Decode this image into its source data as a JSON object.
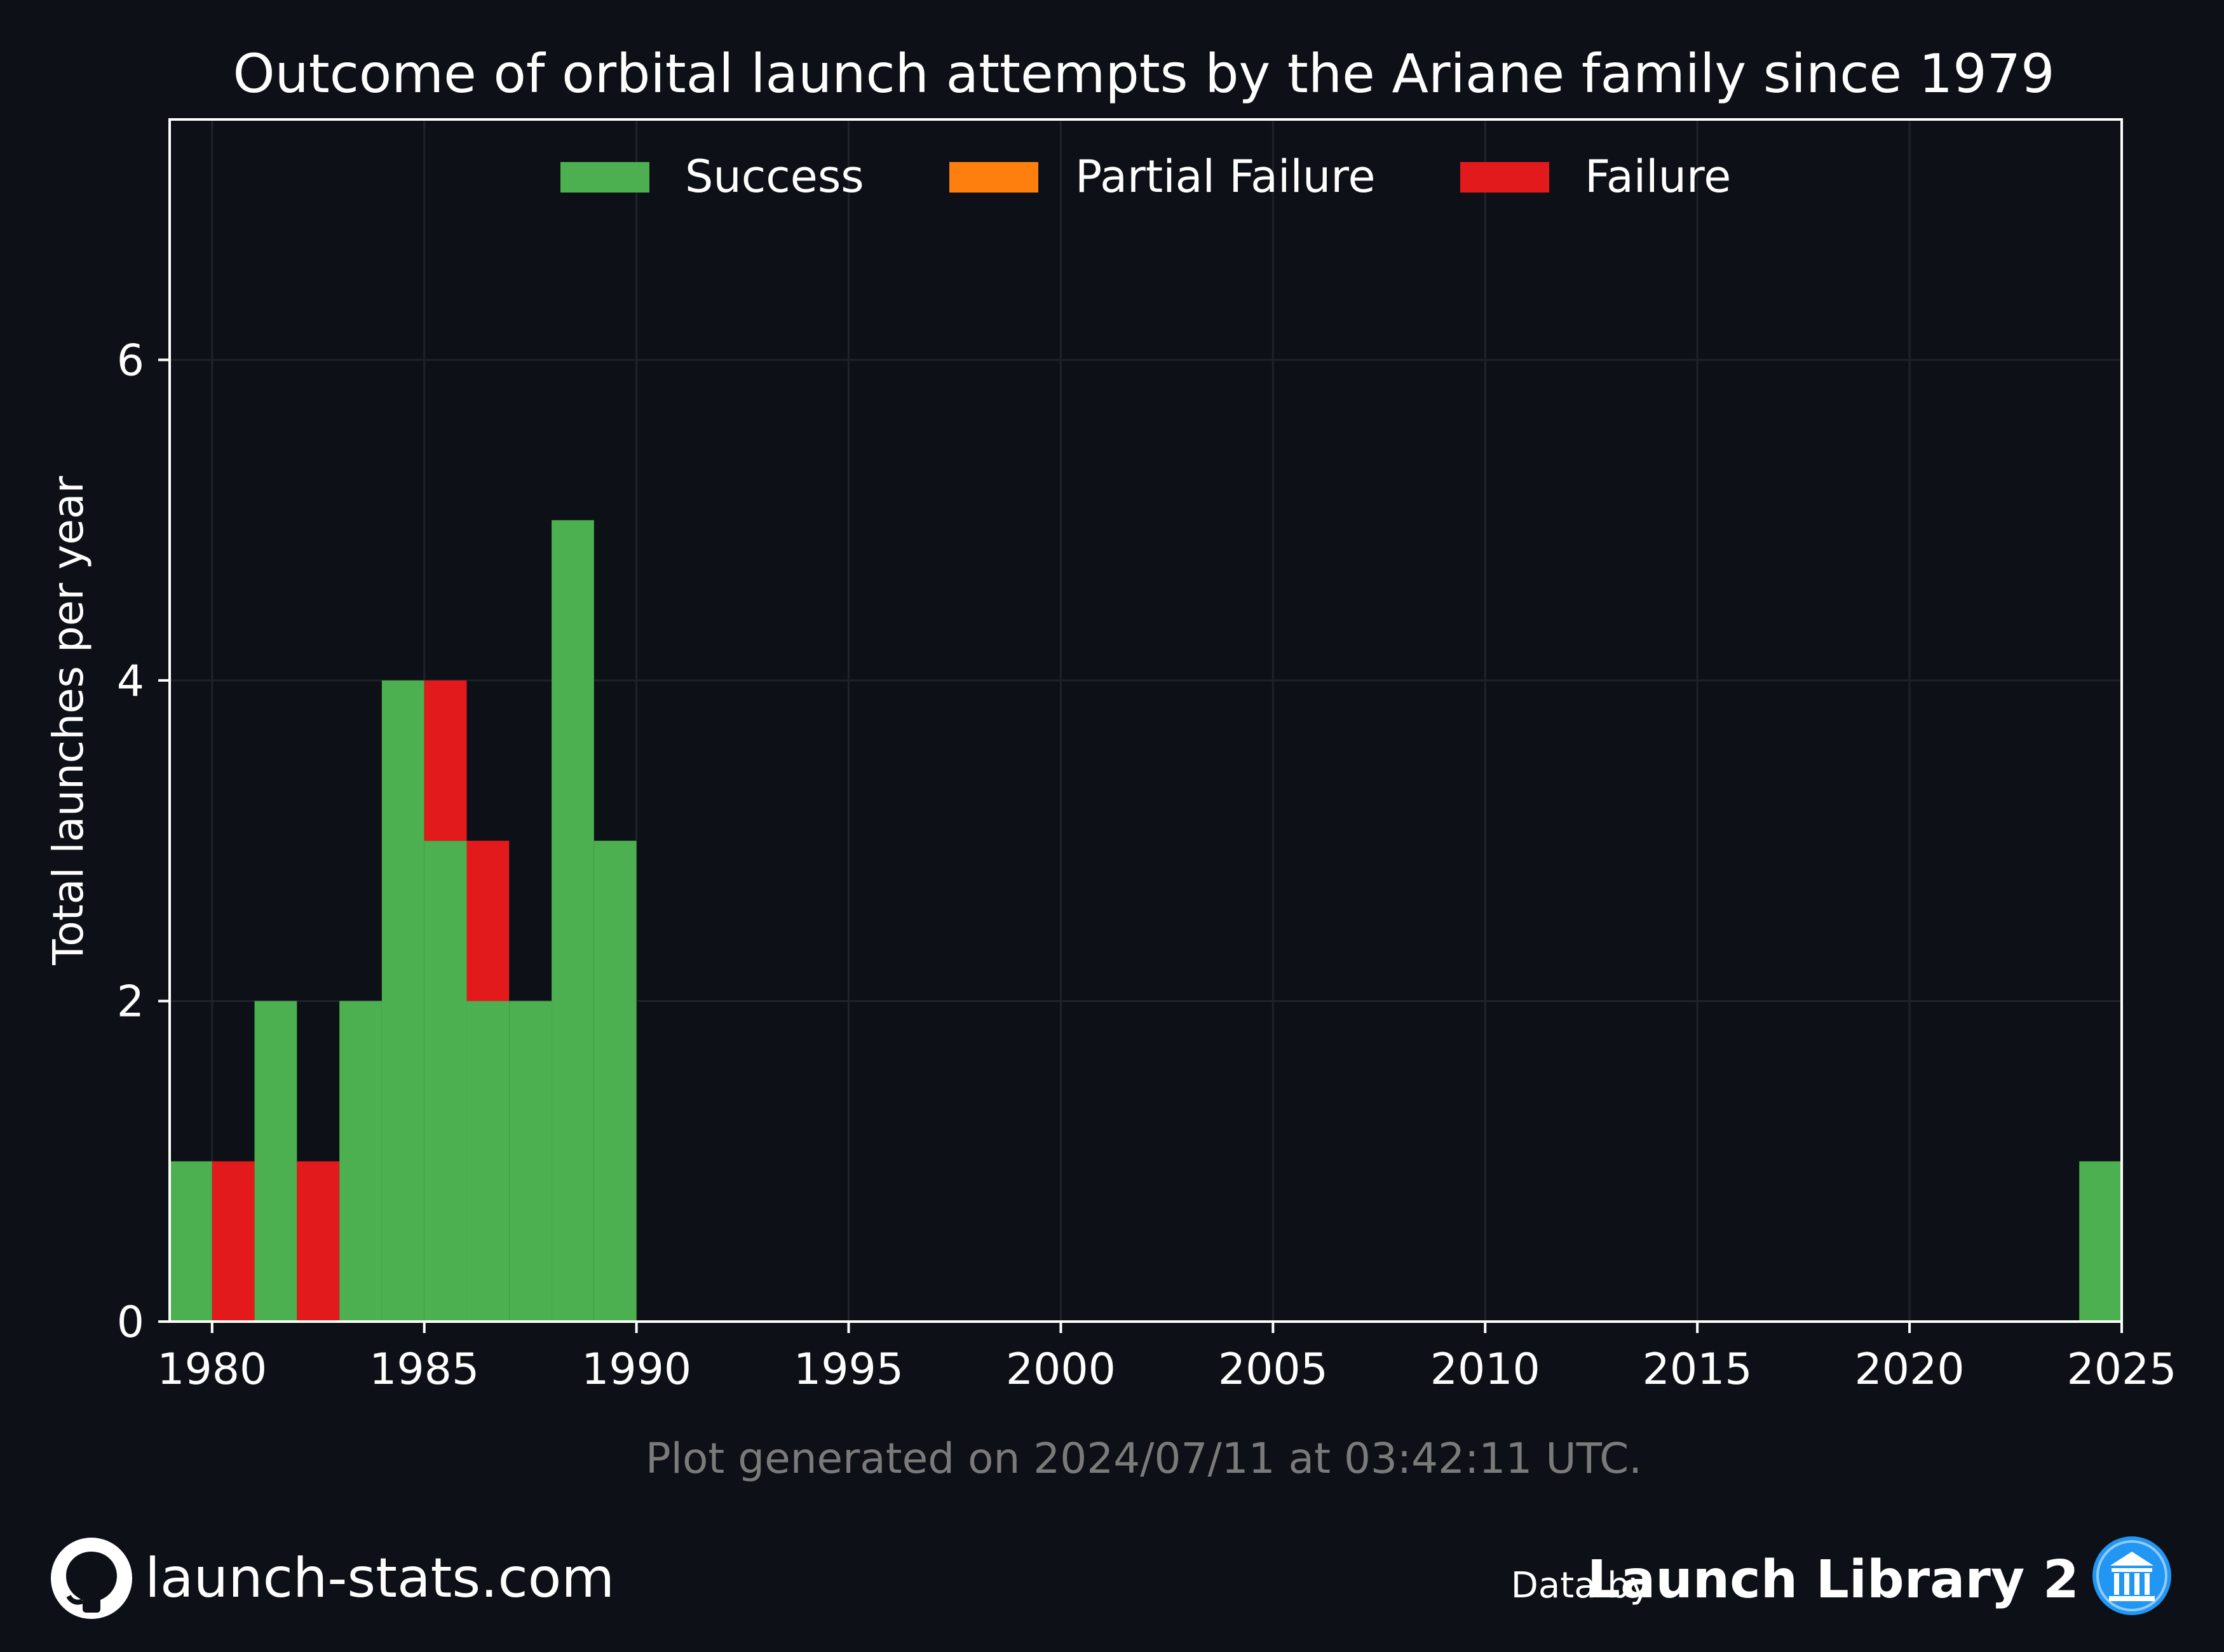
{
  "chart_data": {
    "type": "bar",
    "stacked": true,
    "title": "Outcome of orbital launch attempts by the Ariane family since 1979",
    "xlabel": "",
    "ylabel": "Total launches per year",
    "xlim": [
      1979,
      2025
    ],
    "ylim": [
      0,
      7.5
    ],
    "x_ticks": [
      "1980",
      "1985",
      "1990",
      "1995",
      "2000",
      "2005",
      "2010",
      "2015",
      "2020",
      "2025"
    ],
    "y_ticks": [
      "0",
      "2",
      "4",
      "6"
    ],
    "grid": true,
    "legend_position": "top-center",
    "categories": [
      1979,
      1980,
      1981,
      1982,
      1983,
      1984,
      1985,
      1986,
      1987,
      1988,
      1989,
      2024
    ],
    "series": [
      {
        "name": "Success",
        "color": "#4caf50",
        "values": [
          1,
          0,
          2,
          0,
          2,
          4,
          3,
          2,
          2,
          5,
          3,
          1
        ]
      },
      {
        "name": "Partial Failure",
        "color": "#ff7f0e",
        "values": [
          0,
          0,
          0,
          0,
          0,
          0,
          0,
          0,
          0,
          0,
          0,
          0
        ]
      },
      {
        "name": "Failure",
        "color": "#e31a1c",
        "values": [
          0,
          1,
          0,
          1,
          0,
          0,
          1,
          1,
          0,
          0,
          0,
          0
        ]
      }
    ]
  },
  "footer": {
    "generated_note": "Plot generated on 2024/07/11 at 03:42:11 UTC.",
    "site": "launch-stats.com",
    "data_by": "Data by",
    "brand": "Launch Library 2",
    "site_icon": "github-icon",
    "brand_icon": "launch-library-icon"
  },
  "colors": {
    "background": "#0d1017",
    "grid": "#1e2229",
    "axes": "#ffffff",
    "brand_icon": "#2196f3"
  }
}
